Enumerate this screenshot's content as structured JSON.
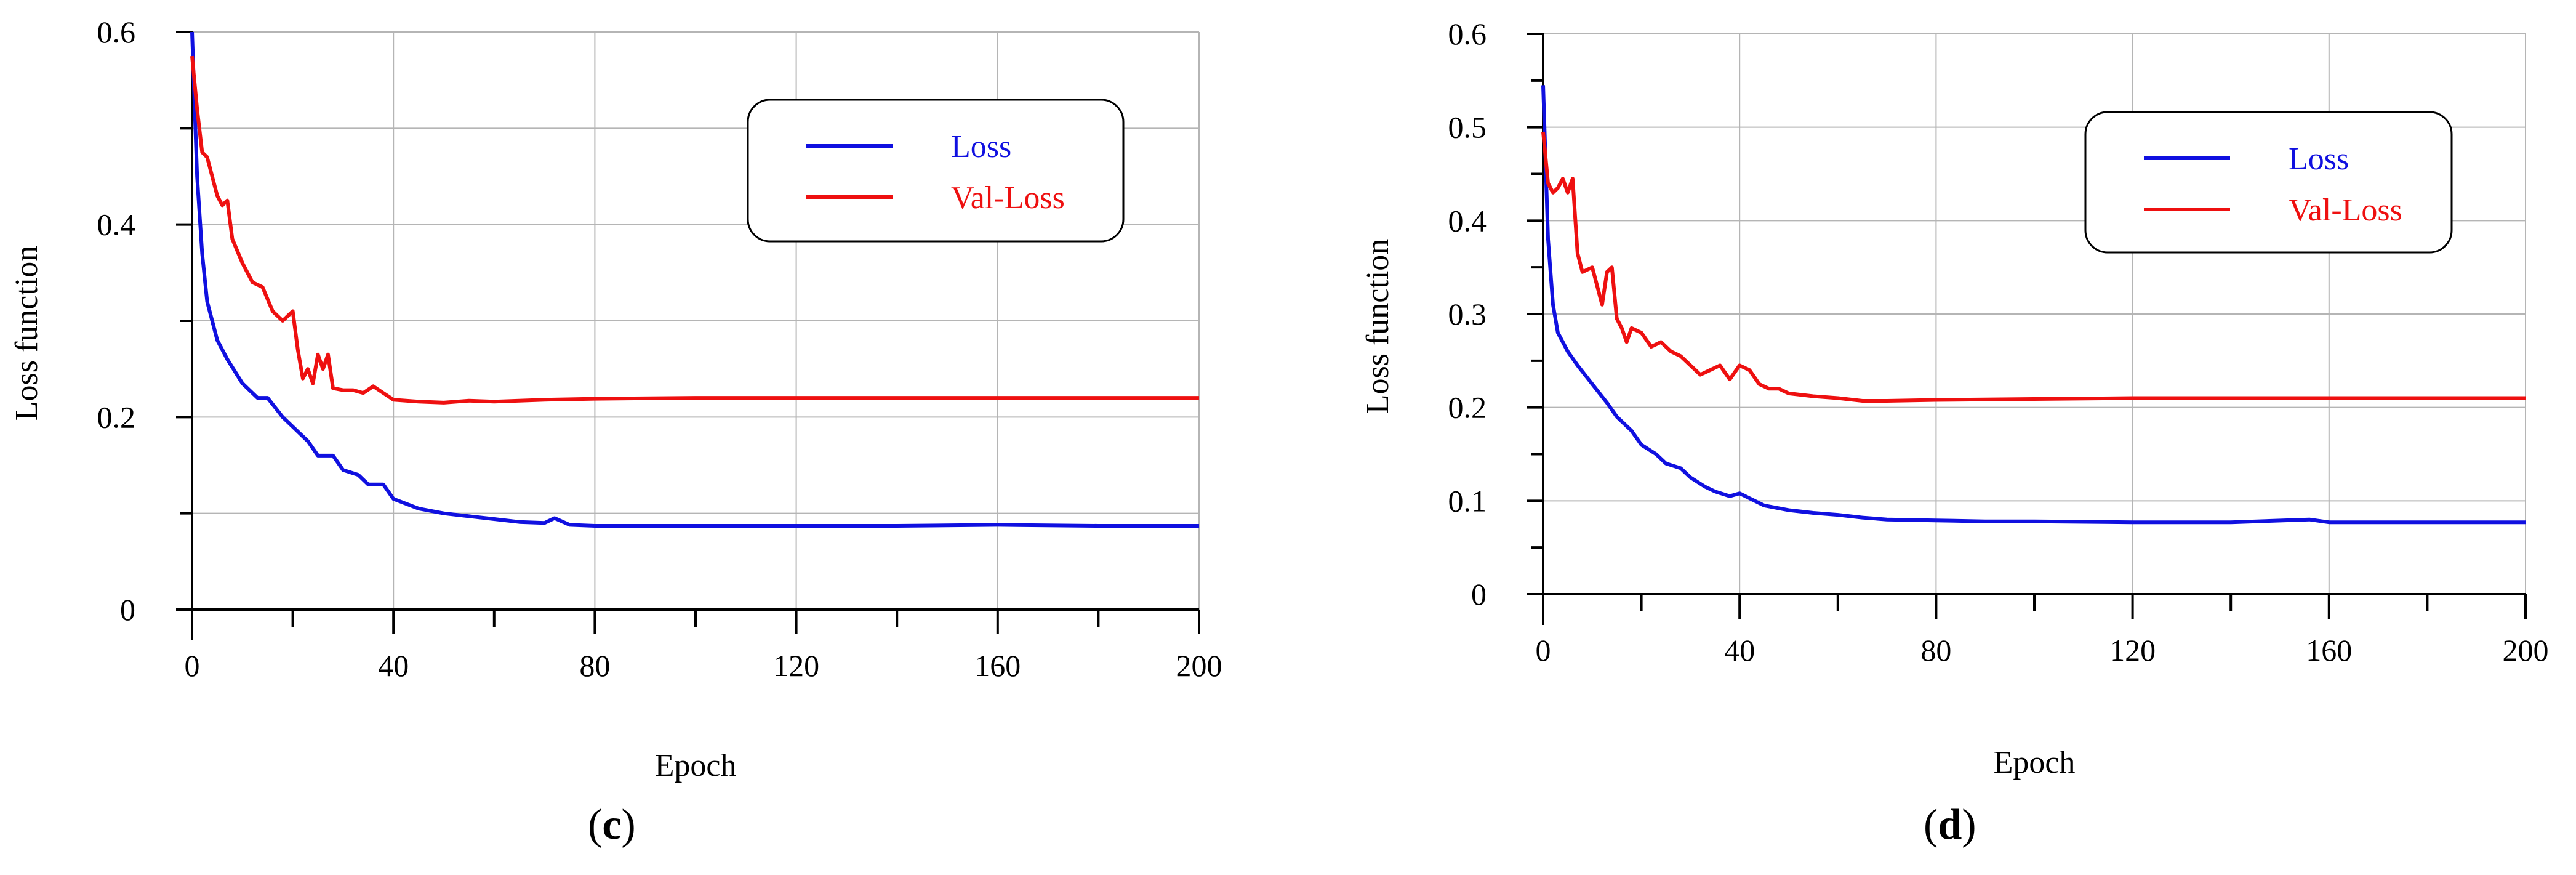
{
  "colors": {
    "loss": "#1010e0",
    "val_loss": "#ee1010",
    "grid": "#b5b5b5"
  },
  "chart_data": [
    {
      "id": "c",
      "panel_label": "c",
      "type": "line",
      "xlabel": "Epoch",
      "ylabel": "Loss function",
      "xlim": [
        0,
        200
      ],
      "ylim": [
        0,
        0.6
      ],
      "xticks": [
        0,
        40,
        80,
        120,
        160,
        200
      ],
      "xtick_labels": [
        "0",
        "40",
        "80",
        "120",
        "160",
        "200"
      ],
      "yticks": [
        0,
        0.2,
        0.4,
        0.6
      ],
      "ytick_labels": [
        "0",
        "0.2",
        "0.4",
        "0.6"
      ],
      "xgrid": [
        0,
        40,
        80,
        120,
        160,
        200
      ],
      "ygrid": [
        0,
        0.1,
        0.2,
        0.3,
        0.4,
        0.5,
        0.6
      ],
      "legend": {
        "position": "top-right",
        "entries": [
          "Loss",
          "Val-Loss"
        ]
      },
      "series": [
        {
          "name": "Loss",
          "color_key": "loss",
          "x": [
            0,
            1,
            2,
            3,
            5,
            7,
            10,
            13,
            15,
            18,
            20,
            23,
            25,
            28,
            30,
            33,
            35,
            38,
            40,
            45,
            50,
            55,
            60,
            65,
            70,
            72,
            75,
            80,
            90,
            100,
            120,
            140,
            160,
            180,
            200
          ],
          "y": [
            0.6,
            0.45,
            0.37,
            0.32,
            0.28,
            0.26,
            0.235,
            0.22,
            0.22,
            0.2,
            0.19,
            0.175,
            0.16,
            0.16,
            0.145,
            0.14,
            0.13,
            0.13,
            0.115,
            0.105,
            0.1,
            0.097,
            0.094,
            0.091,
            0.09,
            0.095,
            0.088,
            0.087,
            0.087,
            0.087,
            0.087,
            0.087,
            0.088,
            0.087,
            0.087
          ]
        },
        {
          "name": "Val-Loss",
          "color_key": "val_loss",
          "x": [
            0,
            1,
            2,
            3,
            5,
            6,
            7,
            8,
            10,
            12,
            14,
            16,
            18,
            20,
            21,
            22,
            23,
            24,
            25,
            26,
            27,
            28,
            30,
            32,
            34,
            36,
            38,
            40,
            45,
            50,
            55,
            60,
            70,
            80,
            100,
            120,
            160,
            200
          ],
          "y": [
            0.575,
            0.52,
            0.475,
            0.47,
            0.43,
            0.42,
            0.425,
            0.385,
            0.36,
            0.34,
            0.335,
            0.31,
            0.3,
            0.31,
            0.27,
            0.24,
            0.25,
            0.235,
            0.265,
            0.25,
            0.265,
            0.23,
            0.228,
            0.228,
            0.225,
            0.232,
            0.225,
            0.218,
            0.216,
            0.215,
            0.217,
            0.216,
            0.218,
            0.219,
            0.22,
            0.22,
            0.22,
            0.22
          ]
        }
      ]
    },
    {
      "id": "d",
      "panel_label": "d",
      "type": "line",
      "xlabel": "Epoch",
      "ylabel": "Loss function",
      "xlim": [
        0,
        200
      ],
      "ylim": [
        0,
        0.6
      ],
      "xticks": [
        0,
        40,
        80,
        120,
        160,
        200
      ],
      "xtick_labels": [
        "0",
        "40",
        "80",
        "120",
        "160",
        "200"
      ],
      "yticks": [
        0,
        0.1,
        0.2,
        0.3,
        0.4,
        0.5,
        0.6
      ],
      "ytick_labels": [
        "0",
        "0.1",
        "0.2",
        "0.3",
        "0.4",
        "0.5",
        "0.6"
      ],
      "xgrid": [
        0,
        40,
        80,
        120,
        160,
        200
      ],
      "ygrid": [
        0,
        0.1,
        0.2,
        0.3,
        0.4,
        0.5,
        0.6
      ],
      "legend": {
        "position": "top-right",
        "entries": [
          "Loss",
          "Val-Loss"
        ]
      },
      "series": [
        {
          "name": "Loss",
          "color_key": "loss",
          "x": [
            0,
            1,
            2,
            3,
            5,
            7,
            10,
            13,
            15,
            18,
            20,
            23,
            25,
            28,
            30,
            33,
            35,
            38,
            40,
            45,
            50,
            55,
            60,
            65,
            70,
            80,
            90,
            100,
            120,
            140,
            156,
            160,
            180,
            200
          ],
          "y": [
            0.545,
            0.38,
            0.31,
            0.28,
            0.26,
            0.245,
            0.225,
            0.205,
            0.19,
            0.175,
            0.16,
            0.15,
            0.14,
            0.135,
            0.125,
            0.115,
            0.11,
            0.105,
            0.108,
            0.095,
            0.09,
            0.087,
            0.085,
            0.082,
            0.08,
            0.079,
            0.078,
            0.078,
            0.077,
            0.077,
            0.08,
            0.077,
            0.077,
            0.077
          ]
        },
        {
          "name": "Val-Loss",
          "color_key": "val_loss",
          "x": [
            0,
            1,
            2,
            3,
            4,
            5,
            6,
            7,
            8,
            10,
            12,
            13,
            14,
            15,
            16,
            17,
            18,
            20,
            22,
            24,
            26,
            28,
            30,
            32,
            34,
            36,
            38,
            40,
            42,
            44,
            46,
            48,
            50,
            55,
            60,
            65,
            70,
            80,
            100,
            120,
            160,
            200
          ],
          "y": [
            0.495,
            0.44,
            0.43,
            0.435,
            0.445,
            0.43,
            0.445,
            0.365,
            0.345,
            0.35,
            0.31,
            0.345,
            0.35,
            0.295,
            0.285,
            0.27,
            0.285,
            0.28,
            0.265,
            0.27,
            0.26,
            0.255,
            0.245,
            0.235,
            0.24,
            0.245,
            0.23,
            0.245,
            0.24,
            0.225,
            0.22,
            0.22,
            0.215,
            0.212,
            0.21,
            0.207,
            0.207,
            0.208,
            0.209,
            0.21,
            0.21,
            0.21
          ]
        }
      ]
    }
  ]
}
